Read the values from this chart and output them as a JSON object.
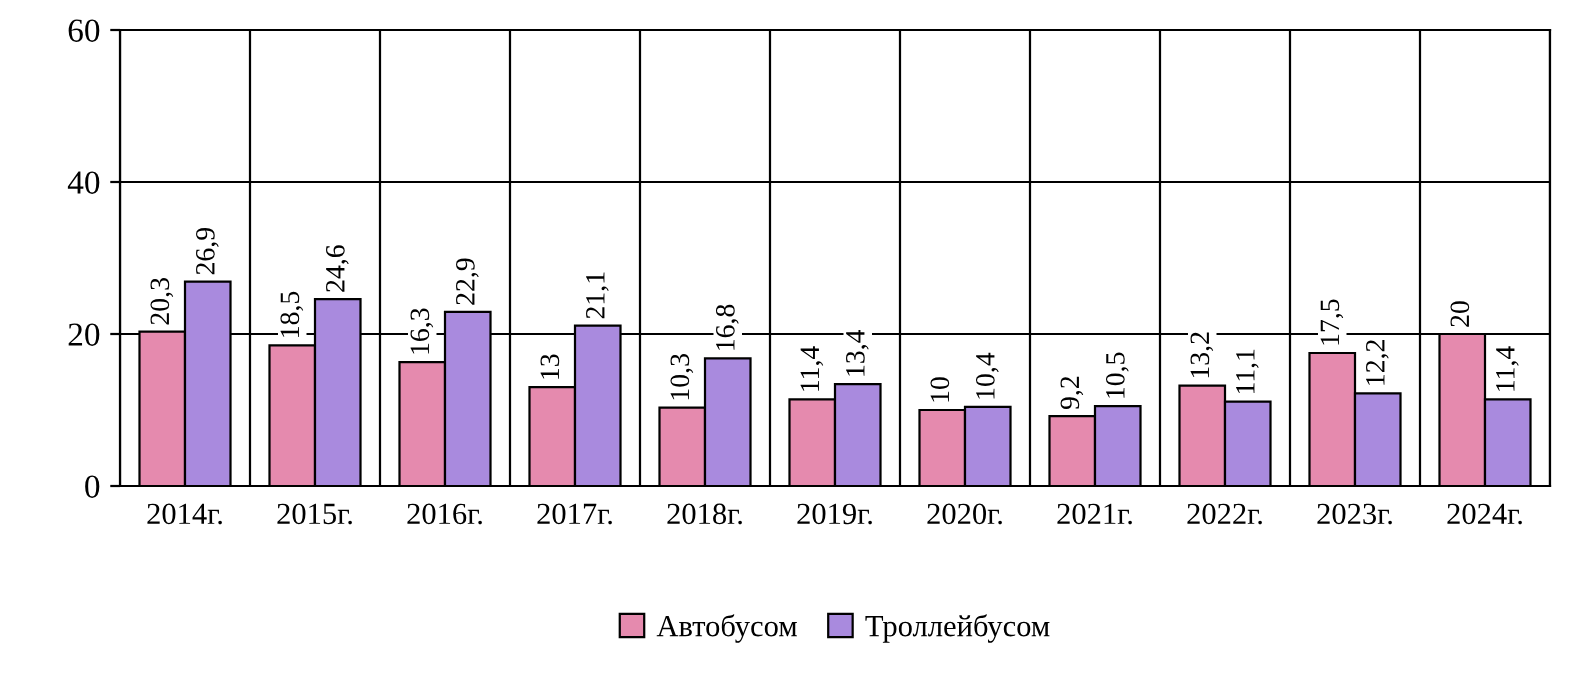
{
  "chart_data": {
    "type": "bar",
    "categories": [
      "2014г.",
      "2015г.",
      "2016г.",
      "2017г.",
      "2018г.",
      "2019г.",
      "2020г.",
      "2021г.",
      "2022г.",
      "2023г.",
      "2024г."
    ],
    "series": [
      {
        "name": "Автобусом",
        "color": "#e58aae",
        "values": [
          20.3,
          18.5,
          16.3,
          13,
          10.3,
          11.4,
          10,
          9.2,
          13.2,
          17.5,
          20
        ],
        "value_labels": [
          "20,3",
          "18,5",
          "16,3",
          "13",
          "10,3",
          "11,4",
          "10",
          "9,2",
          "13,2",
          "17,5",
          "20"
        ]
      },
      {
        "name": "Троллейбусом",
        "color": "#a98ade",
        "values": [
          26.9,
          24.6,
          22.9,
          21.1,
          16.8,
          13.4,
          10.4,
          10.5,
          11.1,
          12.2,
          11.4
        ],
        "value_labels": [
          "26,9",
          "24,6",
          "22,9",
          "21,1",
          "16,8",
          "13,4",
          "10,4",
          "10,5",
          "11,1",
          "12,2",
          "11,4"
        ]
      }
    ],
    "ylim": [
      0,
      60
    ],
    "yticks": [
      0,
      20,
      40,
      60
    ],
    "grid": true,
    "legend": "bottom"
  }
}
